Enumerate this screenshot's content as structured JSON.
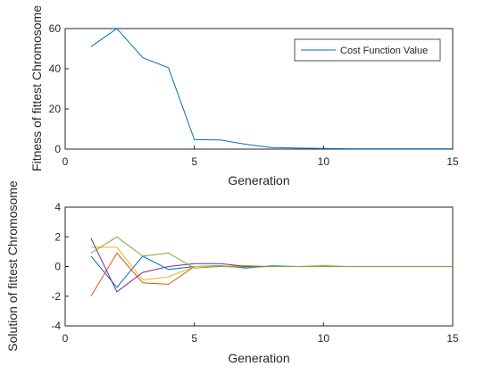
{
  "chart_data": [
    {
      "type": "line",
      "xlabel": "Generation",
      "ylabel": "Fitness of fittest Chromosome",
      "xlim": [
        0,
        15
      ],
      "ylim": [
        0,
        60
      ],
      "xticks": [
        "0",
        "5",
        "10",
        "15"
      ],
      "yticks": [
        "0",
        "20",
        "40",
        "60"
      ],
      "grid": false,
      "legend": "top-right",
      "series": [
        {
          "name": "Cost Function Value",
          "color": "#0072bd",
          "x": [
            1,
            2,
            3,
            4,
            5,
            6,
            7,
            8,
            9,
            10,
            11,
            12,
            13,
            14,
            15
          ],
          "y": [
            51,
            60,
            45.5,
            40.5,
            4.7,
            4.6,
            2.4,
            0.8,
            0.5,
            0.3,
            0.2,
            0.2,
            0.2,
            0.2,
            0.2
          ]
        }
      ]
    },
    {
      "type": "line",
      "xlabel": "Generation",
      "ylabel": "Solution of fittest Chromosome",
      "xlim": [
        0,
        15
      ],
      "ylim": [
        -4,
        4
      ],
      "xticks": [
        "0",
        "5",
        "10",
        "15"
      ],
      "yticks": [
        "-4",
        "-2",
        "0",
        "2",
        "4"
      ],
      "grid": false,
      "legend": "none",
      "series": [
        {
          "color": "#0072bd",
          "x": [
            1,
            2,
            3,
            4,
            5,
            6,
            7,
            8,
            9,
            10,
            11,
            12,
            13,
            14,
            15
          ],
          "y": [
            0.7,
            -1.4,
            0.7,
            -0.2,
            0.0,
            0.05,
            -0.1,
            0.05,
            0.0,
            0.0,
            0.0,
            0.0,
            0.0,
            0.0,
            0.0
          ]
        },
        {
          "color": "#d95319",
          "x": [
            1,
            2,
            3,
            4,
            5,
            6,
            7,
            8,
            9,
            10,
            11,
            12,
            13,
            14,
            15
          ],
          "y": [
            -2.0,
            0.9,
            -1.1,
            -1.2,
            0.0,
            0.0,
            0.05,
            0.0,
            0.0,
            0.05,
            0.0,
            0.0,
            0.0,
            0.0,
            0.0
          ]
        },
        {
          "color": "#edb120",
          "x": [
            1,
            2,
            3,
            4,
            5,
            6,
            7,
            8,
            9,
            10,
            11,
            12,
            13,
            14,
            15
          ],
          "y": [
            1.3,
            1.3,
            -0.9,
            -0.7,
            0.0,
            0.0,
            0.0,
            0.0,
            0.0,
            0.0,
            0.0,
            0.0,
            0.0,
            0.0,
            0.0
          ]
        },
        {
          "color": "#7e2f8e",
          "x": [
            1,
            2,
            3,
            4,
            5,
            6,
            7,
            8,
            9,
            10,
            11,
            12,
            13,
            14,
            15
          ],
          "y": [
            1.9,
            -1.7,
            -0.4,
            0.0,
            0.2,
            0.2,
            0.0,
            0.0,
            0.0,
            0.0,
            0.0,
            0.0,
            0.0,
            0.0,
            0.0
          ]
        },
        {
          "color": "#77ac30",
          "x": [
            1,
            2,
            3,
            4,
            5,
            6,
            7,
            8,
            9,
            10,
            11,
            12,
            13,
            14,
            15
          ],
          "y": [
            0.9,
            2.0,
            0.7,
            0.9,
            -0.1,
            0.0,
            -0.05,
            0.0,
            0.0,
            0.0,
            0.0,
            0.0,
            0.0,
            0.0,
            0.0
          ]
        }
      ]
    }
  ]
}
